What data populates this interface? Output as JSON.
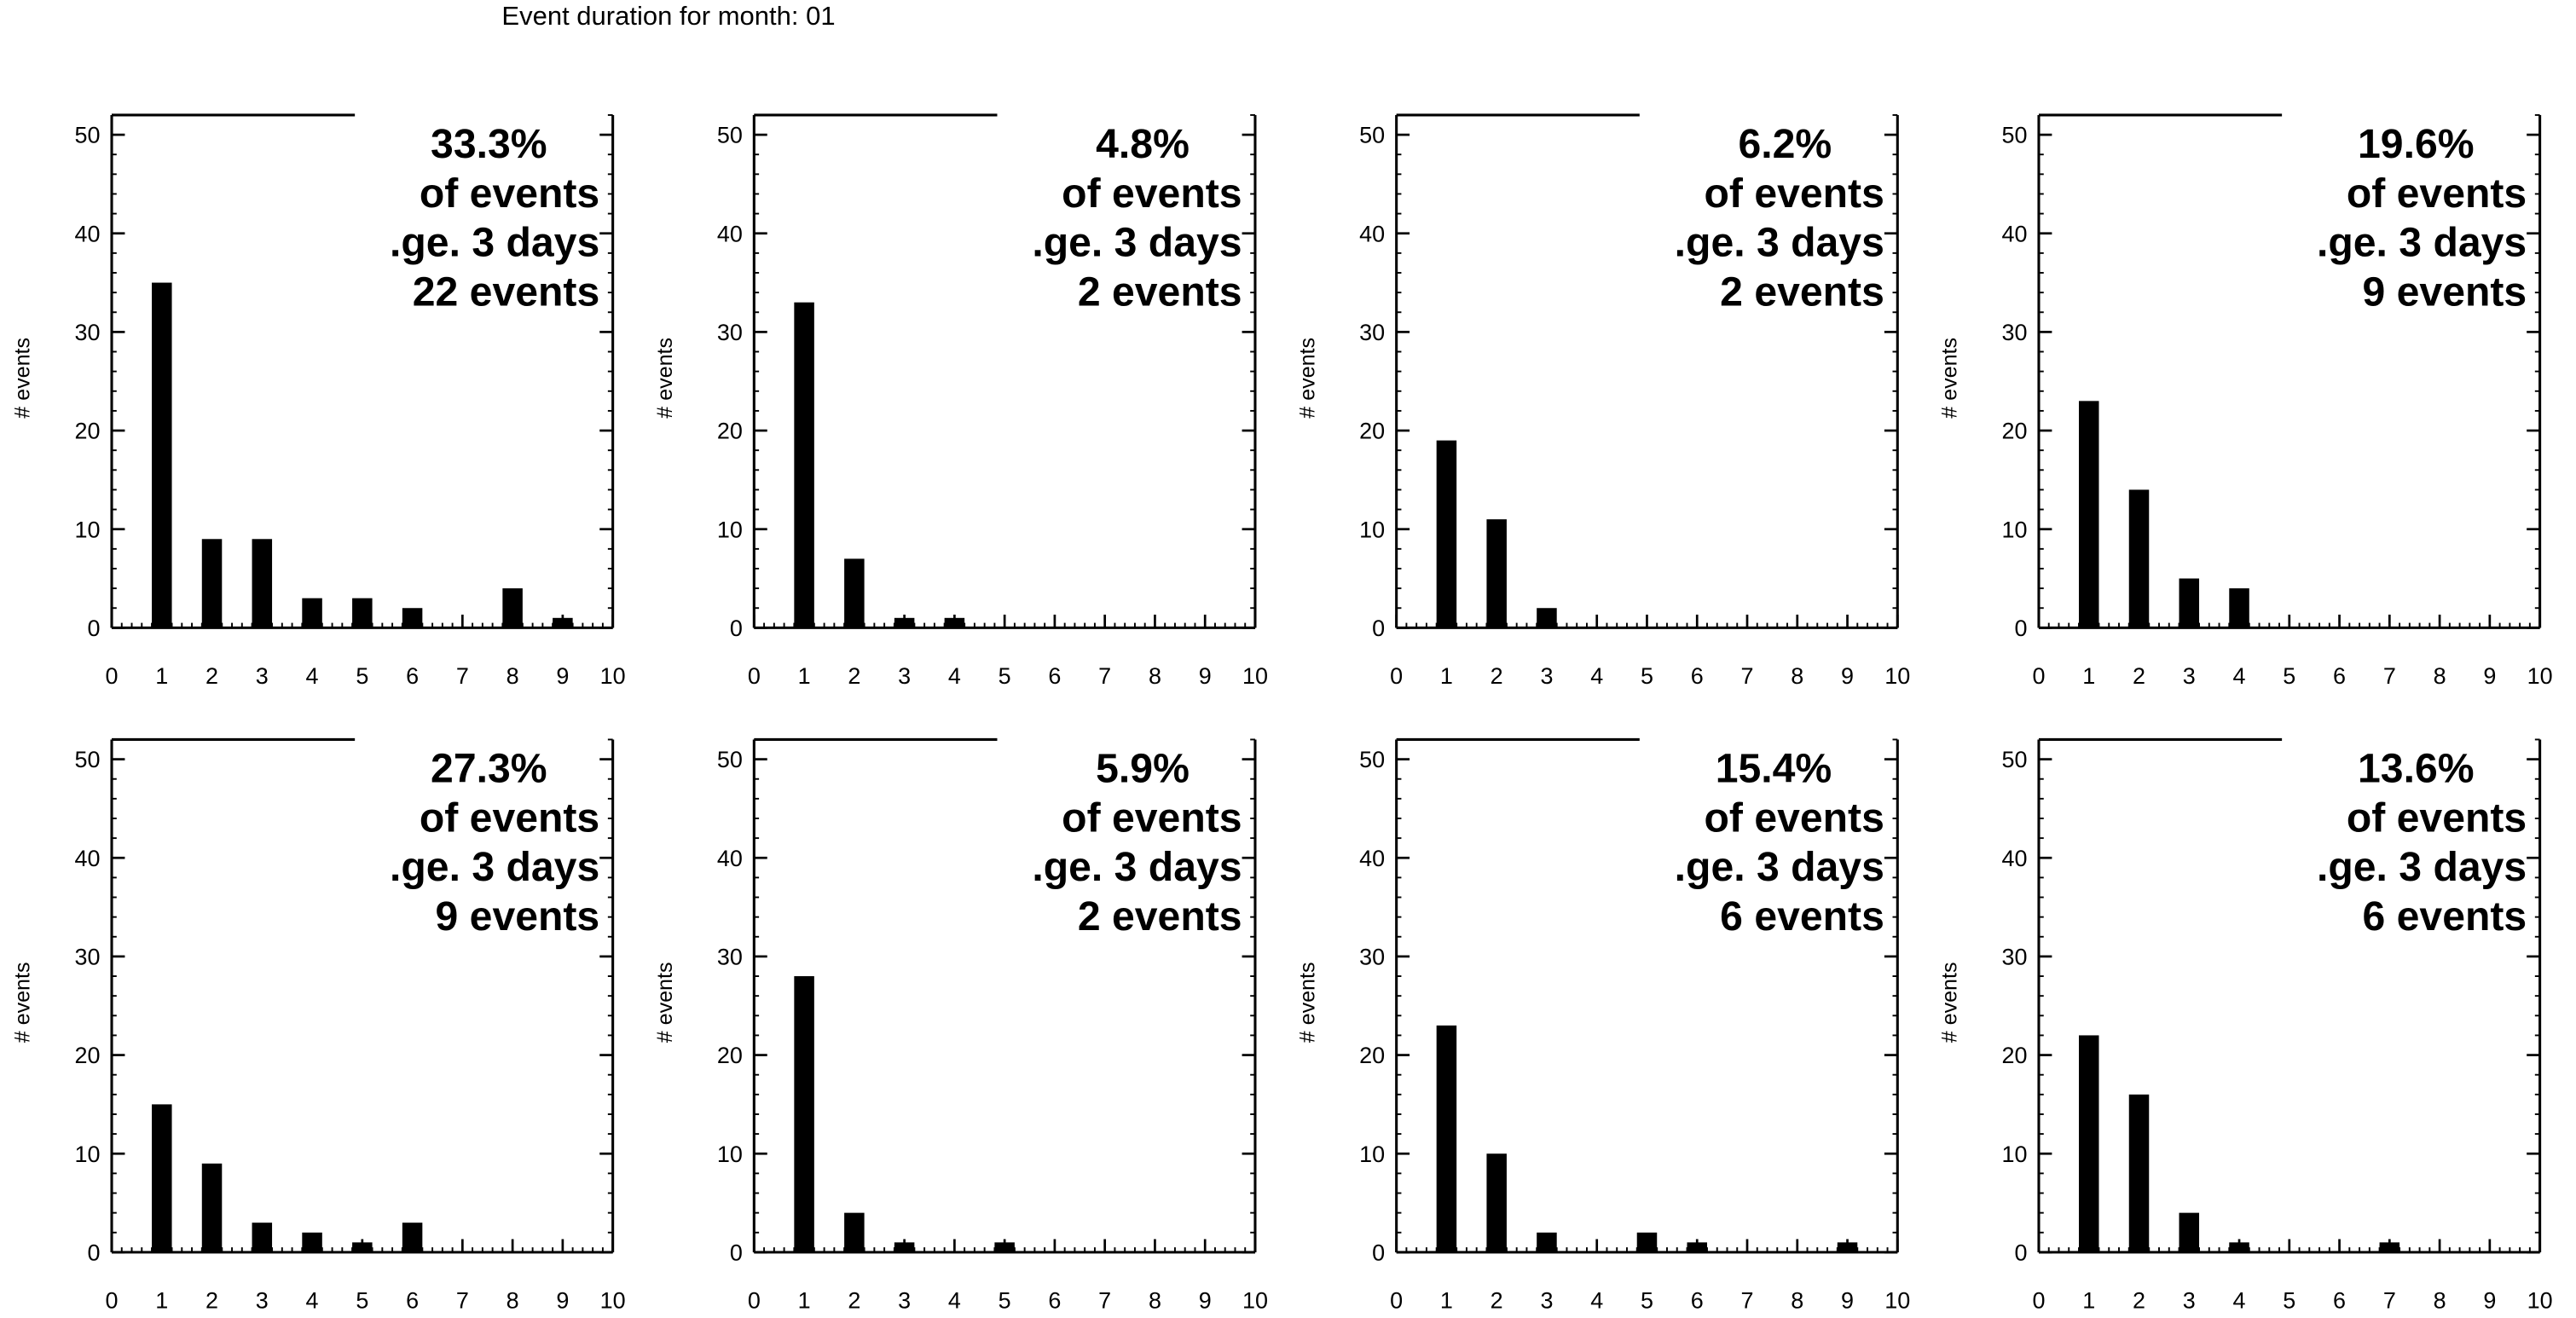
{
  "figure": {
    "title": "Event duration for month: 01"
  },
  "chart_data": [
    {
      "type": "bar",
      "ylabel": "# events",
      "ylim": [
        0,
        52
      ],
      "xlim": [
        0,
        10
      ],
      "xticks": [
        0,
        1,
        2,
        3,
        4,
        5,
        6,
        7,
        8,
        9,
        10
      ],
      "yticks": [
        0,
        10,
        20,
        30,
        40,
        50
      ],
      "x": [
        1,
        2,
        3,
        4,
        5,
        6,
        7,
        8,
        9
      ],
      "values": [
        35,
        9,
        9,
        3,
        3,
        2,
        0,
        4,
        1
      ],
      "annotation": [
        "33.3%",
        "of events",
        ".ge. 3 days",
        "22 events"
      ]
    },
    {
      "type": "bar",
      "ylabel": "# events",
      "ylim": [
        0,
        52
      ],
      "xlim": [
        0,
        10
      ],
      "xticks": [
        0,
        1,
        2,
        3,
        4,
        5,
        6,
        7,
        8,
        9,
        10
      ],
      "yticks": [
        0,
        10,
        20,
        30,
        40,
        50
      ],
      "x": [
        1,
        2,
        3,
        4
      ],
      "values": [
        33,
        7,
        1,
        1
      ],
      "annotation": [
        "4.8%",
        "of events",
        ".ge. 3 days",
        "2 events"
      ]
    },
    {
      "type": "bar",
      "ylabel": "# events",
      "ylim": [
        0,
        52
      ],
      "xlim": [
        0,
        10
      ],
      "xticks": [
        0,
        1,
        2,
        3,
        4,
        5,
        6,
        7,
        8,
        9,
        10
      ],
      "yticks": [
        0,
        10,
        20,
        30,
        40,
        50
      ],
      "x": [
        1,
        2,
        3
      ],
      "values": [
        19,
        11,
        2
      ],
      "annotation": [
        "6.2%",
        "of events",
        ".ge. 3 days",
        "2 events"
      ]
    },
    {
      "type": "bar",
      "ylabel": "# events",
      "ylim": [
        0,
        52
      ],
      "xlim": [
        0,
        10
      ],
      "xticks": [
        0,
        1,
        2,
        3,
        4,
        5,
        6,
        7,
        8,
        9,
        10
      ],
      "yticks": [
        0,
        10,
        20,
        30,
        40,
        50
      ],
      "x": [
        1,
        2,
        3,
        4
      ],
      "values": [
        23,
        14,
        5,
        4
      ],
      "annotation": [
        "19.6%",
        "of events",
        ".ge. 3 days",
        "9 events"
      ]
    },
    {
      "type": "bar",
      "ylabel": "# events",
      "ylim": [
        0,
        52
      ],
      "xlim": [
        0,
        10
      ],
      "xticks": [
        0,
        1,
        2,
        3,
        4,
        5,
        6,
        7,
        8,
        9,
        10
      ],
      "yticks": [
        0,
        10,
        20,
        30,
        40,
        50
      ],
      "x": [
        1,
        2,
        3,
        4,
        5,
        6
      ],
      "values": [
        15,
        9,
        3,
        2,
        1,
        3
      ],
      "annotation": [
        "27.3%",
        "of events",
        ".ge. 3 days",
        "9 events"
      ]
    },
    {
      "type": "bar",
      "ylabel": "# events",
      "ylim": [
        0,
        52
      ],
      "xlim": [
        0,
        10
      ],
      "xticks": [
        0,
        1,
        2,
        3,
        4,
        5,
        6,
        7,
        8,
        9,
        10
      ],
      "yticks": [
        0,
        10,
        20,
        30,
        40,
        50
      ],
      "x": [
        1,
        2,
        3,
        5
      ],
      "values": [
        28,
        4,
        1,
        1
      ],
      "annotation": [
        "5.9%",
        "of events",
        ".ge. 3 days",
        "2 events"
      ]
    },
    {
      "type": "bar",
      "ylabel": "# events",
      "ylim": [
        0,
        52
      ],
      "xlim": [
        0,
        10
      ],
      "xticks": [
        0,
        1,
        2,
        3,
        4,
        5,
        6,
        7,
        8,
        9,
        10
      ],
      "yticks": [
        0,
        10,
        20,
        30,
        40,
        50
      ],
      "x": [
        1,
        2,
        3,
        5,
        6,
        9
      ],
      "values": [
        23,
        10,
        2,
        2,
        1,
        1
      ],
      "annotation": [
        "15.4%",
        "of events",
        ".ge. 3 days",
        "6 events"
      ]
    },
    {
      "type": "bar",
      "ylabel": "# events",
      "ylim": [
        0,
        52
      ],
      "xlim": [
        0,
        10
      ],
      "xticks": [
        0,
        1,
        2,
        3,
        4,
        5,
        6,
        7,
        8,
        9,
        10
      ],
      "yticks": [
        0,
        10,
        20,
        30,
        40,
        50
      ],
      "x": [
        1,
        2,
        3,
        4,
        7
      ],
      "values": [
        22,
        16,
        4,
        1,
        1
      ],
      "annotation": [
        "13.6%",
        "of events",
        ".ge. 3 days",
        "6 events"
      ]
    }
  ]
}
